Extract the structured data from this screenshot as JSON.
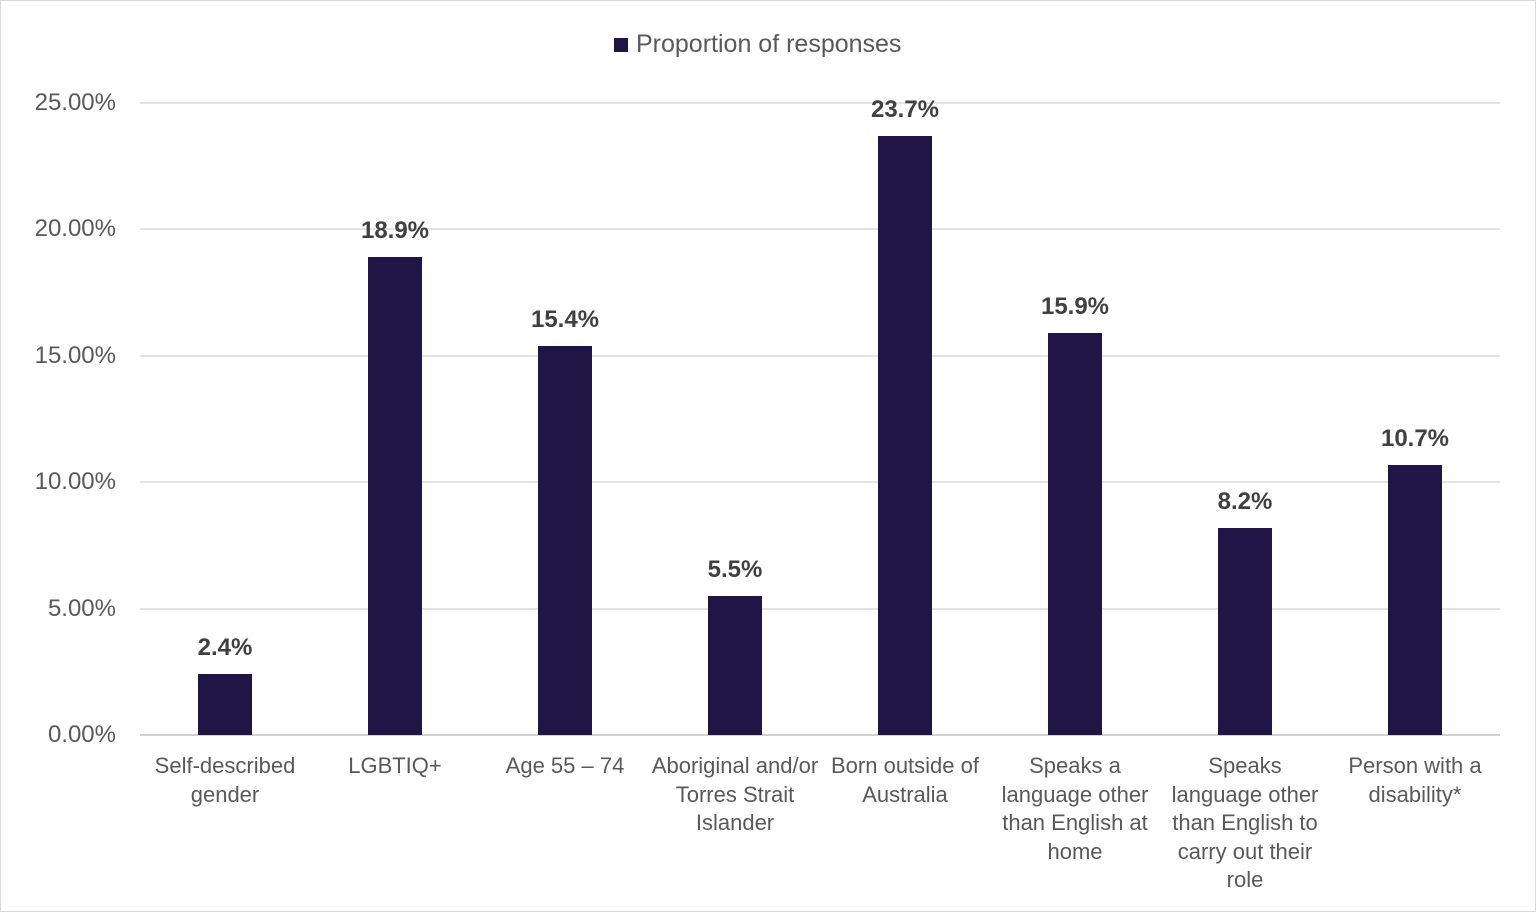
{
  "chart_data": {
    "type": "bar",
    "title": "",
    "xlabel": "",
    "ylabel": "",
    "ylim": [
      0,
      25
    ],
    "yticks": [
      "0.00%",
      "5.00%",
      "10.00%",
      "15.00%",
      "20.00%",
      "25.00%"
    ],
    "grid": true,
    "legend_position": "top",
    "categories": [
      "Self-described gender",
      "LGBTIQ+",
      "Age 55 – 74",
      "Aboriginal and/or Torres Strait Islander",
      "Born outside of Australia",
      "Speaks a language other than English at home",
      "Speaks language other than English to carry out their role",
      "Person with a disability*"
    ],
    "series": [
      {
        "name": "Proportion of responses",
        "color": "#1f1646",
        "values": [
          2.4,
          18.9,
          15.4,
          5.5,
          23.7,
          15.9,
          8.2,
          10.7
        ],
        "data_labels": [
          "2.4%",
          "18.9%",
          "15.4%",
          "5.5%",
          "23.7%",
          "15.9%",
          "8.2%",
          "10.7%"
        ]
      }
    ]
  }
}
